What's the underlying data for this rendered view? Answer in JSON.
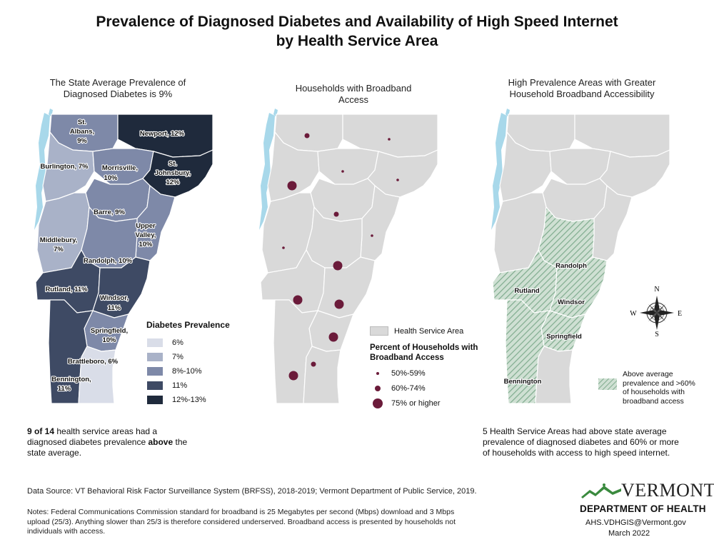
{
  "title": {
    "line1": "Prevalence of Diagnosed Diabetes and Availability of High Speed Internet",
    "line2": "by Health Service Area"
  },
  "panels": [
    {
      "title_line1": "The State Average Prevalence of",
      "title_line2": "Diagnosed Diabetes is 9%"
    },
    {
      "title_line1": "Households with Broadband",
      "title_line2": "Access"
    },
    {
      "title_line1": "High Prevalence Areas with Greater",
      "title_line2": "Household Broadband Accessibility"
    }
  ],
  "map1": {
    "labels": [
      {
        "l1": "St.",
        "l2": "Albans,",
        "l3": "9%"
      },
      {
        "l1": "Newport, 12%"
      },
      {
        "l1": "Burlington, 7%"
      },
      {
        "l1": "Morrisville,",
        "l2": "10%"
      },
      {
        "l1": "St.",
        "l2": "Johnsbury,",
        "l3": "12%"
      },
      {
        "l1": "Barre, 9%"
      },
      {
        "l1": "Upper",
        "l2": "Valley,",
        "l3": "10%"
      },
      {
        "l1": "Middlebury,",
        "l2": "7%"
      },
      {
        "l1": "Randolph, 10%"
      },
      {
        "l1": "Rutland, 11%"
      },
      {
        "l1": "Windsor,",
        "l2": "11%"
      },
      {
        "l1": "Springfield,",
        "l2": "10%"
      },
      {
        "l1": "Brattleboro, 6%"
      },
      {
        "l1": "Bennington,",
        "l2": "11%"
      }
    ],
    "legend": {
      "title": "Diabetes Prevalence",
      "items": [
        {
          "label": "6%",
          "color": "#d9dde8"
        },
        {
          "label": "7%",
          "color": "#a9b2c8"
        },
        {
          "label": "8%-10%",
          "color": "#7e89a8"
        },
        {
          "label": "11%",
          "color": "#3e4a64"
        },
        {
          "label": "12%-13%",
          "color": "#1f2a3c"
        }
      ]
    }
  },
  "map2": {
    "legend": {
      "hsa_label": "Health Service Area",
      "title_line1": "Percent of Households with",
      "title_line2": "Broadband Access",
      "items": [
        {
          "label": "50%-59%"
        },
        {
          "label": "60%-74%"
        },
        {
          "label": "75% or higher"
        }
      ],
      "dot_color": "#6b1b3a"
    }
  },
  "map3": {
    "labels": [
      "Randolph",
      "Rutland",
      "Windsor",
      "Springfield",
      "Bennington"
    ],
    "compass": {
      "n": "N",
      "s": "S",
      "e": "E",
      "w": "W"
    },
    "legend": {
      "line1": "Above average",
      "line2": "prevalence and >60%",
      "line3": "of households with",
      "line4": "broadband access"
    },
    "hatch_color": "#7fab8e"
  },
  "notes": {
    "left_bold1": "9 of 14",
    "left_text1": " health service areas had a",
    "left_text2": "diagnosed diabetes prevalence ",
    "left_bold2": "above",
    "left_text3": " the",
    "left_text4": "state average.",
    "right1": "5 Health Service Areas had above state average",
    "right2": "prevalence of diagnosed diabetes and 60% or more",
    "right3": "of households with access to high speed internet."
  },
  "footer": {
    "source": "Data Source: VT Behavioral Risk Factor Surveillance System (BRFSS), 2018-2019; Vermont Department of Public Service, 2019.",
    "notes1": "Notes: Federal Communications Commission standard for broadband is 25 Megabytes per second (Mbps) download and 3 Mbps",
    "notes2": "upload (25/3). Anything slower than 25/3 is therefore considered underserved. Broadband access is presented by households not",
    "notes3": "individuals with access.",
    "logo_word": "VERMONT",
    "dept": "DEPARTMENT OF HEALTH",
    "contact": "AHS.VDHGIS@Vermont.gov",
    "date": "March 2022"
  }
}
